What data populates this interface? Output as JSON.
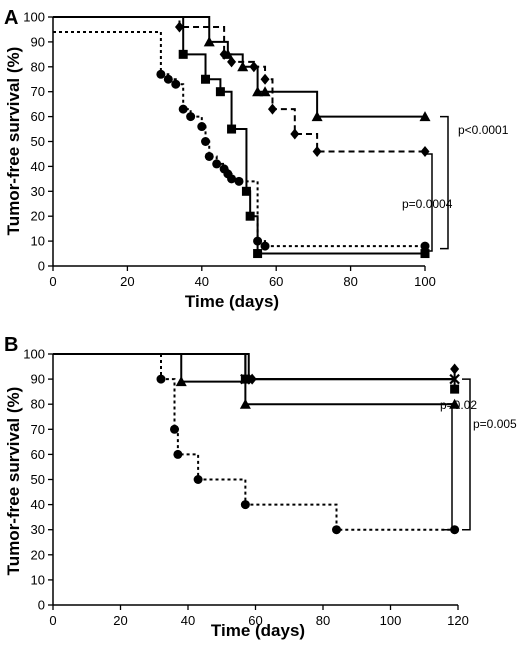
{
  "chart_data": [
    {
      "panel": "A",
      "type": "line",
      "xlabel": "Time (days)",
      "ylabel": "Tumor-free survival (%)",
      "xlim": [
        0,
        100
      ],
      "ylim": [
        0,
        100
      ],
      "xticks": [
        0,
        20,
        40,
        60,
        80,
        100
      ],
      "yticks": [
        0,
        10,
        20,
        30,
        40,
        50,
        60,
        70,
        80,
        90,
        100
      ],
      "series": [
        {
          "marker": "triangle",
          "line": "solid",
          "x": [
            0,
            42,
            47,
            51,
            55,
            57,
            71,
            100
          ],
          "y": [
            100,
            90,
            85,
            80,
            70,
            70,
            60,
            60
          ]
        },
        {
          "marker": "diamond",
          "line": "dashed",
          "x": [
            0,
            34,
            46,
            48,
            54,
            57,
            59,
            65,
            71,
            100
          ],
          "y": [
            100,
            96,
            85,
            82,
            80,
            75,
            63,
            53,
            46,
            46
          ]
        },
        {
          "marker": "square",
          "line": "solid",
          "x": [
            0,
            35,
            41,
            45,
            48,
            52,
            53,
            55,
            100
          ],
          "y": [
            100,
            85,
            75,
            70,
            55,
            30,
            20,
            5,
            5
          ]
        },
        {
          "marker": "circle",
          "line": "dotted",
          "x": [
            0,
            29,
            31,
            33,
            35,
            37,
            40,
            41,
            42,
            44,
            46,
            47,
            48,
            50,
            55,
            57,
            100
          ],
          "y": [
            94,
            77,
            75,
            73,
            63,
            60,
            56,
            50,
            44,
            41,
            39,
            37,
            35,
            34,
            10,
            8,
            8
          ]
        }
      ],
      "annotations": [
        {
          "text": "p=0.0004",
          "bracket_y": [
            45,
            6
          ]
        },
        {
          "text": "p<0.0001",
          "bracket_y": [
            60,
            7
          ]
        }
      ]
    },
    {
      "panel": "B",
      "type": "line",
      "xlabel": "Time (days)",
      "ylabel": "Tumor-free survival (%)",
      "xlim": [
        0,
        120
      ],
      "ylim": [
        0,
        100
      ],
      "xticks": [
        0,
        20,
        40,
        60,
        80,
        100,
        120
      ],
      "yticks": [
        0,
        10,
        20,
        30,
        40,
        50,
        60,
        70,
        80,
        90,
        100
      ],
      "series": [
        {
          "marker": "diamond",
          "line": "solid",
          "x": [
            0,
            58,
            59,
            119
          ],
          "y": [
            100,
            90,
            90,
            94
          ]
        },
        {
          "marker": "cross",
          "line": "solid",
          "x": [
            0,
            57,
            119
          ],
          "y": [
            100,
            90,
            90
          ]
        },
        {
          "marker": "square",
          "line": "solid",
          "x": [
            0,
            57,
            119
          ],
          "y": [
            100,
            90,
            86
          ]
        },
        {
          "marker": "triangle",
          "line": "solid",
          "x": [
            0,
            38,
            57,
            119
          ],
          "y": [
            100,
            89,
            80,
            80
          ]
        },
        {
          "marker": "circle",
          "line": "dotted",
          "x": [
            0,
            32,
            36,
            37,
            43,
            57,
            84,
            119
          ],
          "y": [
            100,
            90,
            70,
            60,
            50,
            40,
            30,
            30
          ]
        }
      ],
      "annotations": [
        {
          "text": "p=0.02",
          "bracket_y": [
            80,
            30
          ]
        },
        {
          "text": "p=0.005",
          "bracket_y": [
            90,
            30
          ]
        }
      ]
    }
  ]
}
